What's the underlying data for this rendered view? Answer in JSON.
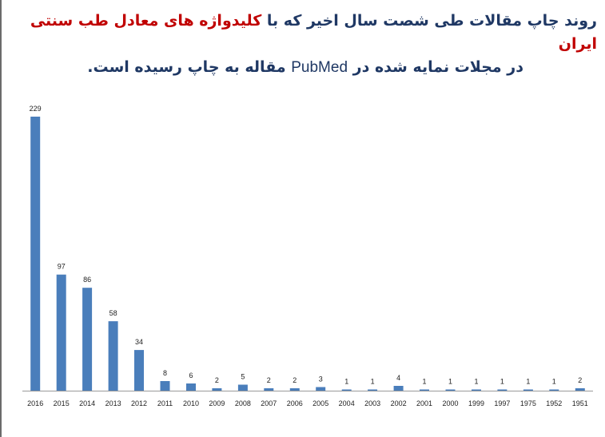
{
  "title": {
    "line1_a": "روند چاپ مقالات طی شصت سال اخیر که با ",
    "line1_b": "کلیدواژه های معادل طب سنتی ایران",
    "line2_a": "در مجلات نمایه شده در ",
    "line2_b": "PubMed",
    "line2_c": " مقاله به چاپ رسیده است."
  },
  "colors": {
    "bar": "#4a7ebb",
    "title": "#1f3864",
    "highlight": "#c00000",
    "axis": "#9a9a9a"
  },
  "chart_data": {
    "type": "bar",
    "categories": [
      "2016",
      "2015",
      "2014",
      "2013",
      "2012",
      "2011",
      "2010",
      "2009",
      "2008",
      "2007",
      "2006",
      "2005",
      "2004",
      "2003",
      "2002",
      "2001",
      "2000",
      "1999",
      "1997",
      "1975",
      "1952",
      "1951"
    ],
    "values": [
      229,
      97,
      86,
      58,
      34,
      8,
      6,
      2,
      5,
      2,
      2,
      3,
      1,
      1,
      4,
      1,
      1,
      1,
      1,
      1,
      1,
      2
    ],
    "data_labels": true,
    "ylim": [
      0,
      229
    ],
    "grid": false,
    "legend": "none"
  }
}
